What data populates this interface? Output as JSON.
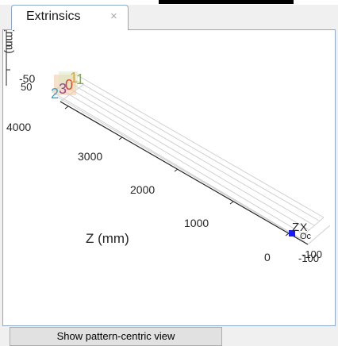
{
  "tab": {
    "label": "Extrinsics",
    "close_glyph": "×"
  },
  "plot": {
    "z_axis_label": "Z (mm)",
    "z_ticks": [
      "4000",
      "3000",
      "2000",
      "1000",
      "0"
    ],
    "y_tick_top": "-50",
    "y_tick_mid": "50",
    "x_ticks_right": [
      "-100",
      "-100"
    ],
    "clipped_y_label": "(mm)",
    "camera_label": "Z",
    "camera_label_x": "X",
    "camera_sub": "Oc",
    "camera_color": "#0000ff",
    "pattern_labels": [
      {
        "text": "2",
        "color": "#3fa0c8"
      },
      {
        "text": "0",
        "color": "#d94a2a"
      },
      {
        "text": "1",
        "color": "#7fb23a"
      },
      {
        "text": "1",
        "color": "#e8a020"
      },
      {
        "text": "3",
        "color": "#a0419a"
      }
    ]
  },
  "buttons": {
    "show_pattern_view": "Show pattern-centric view"
  }
}
